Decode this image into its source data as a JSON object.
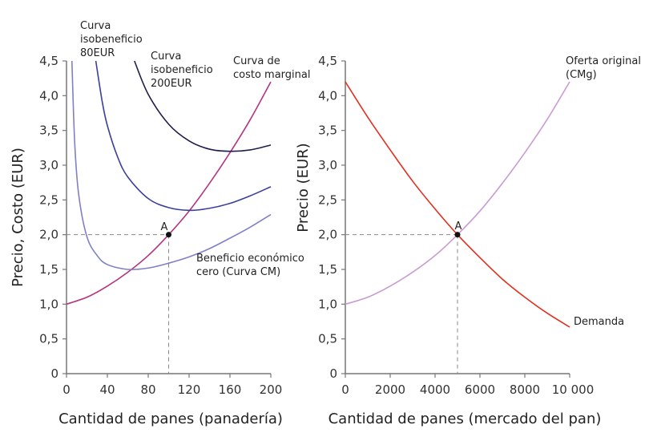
{
  "chart_data": [
    {
      "type": "line",
      "xlabel": "Cantidad de panes (panadería)",
      "ylabel": "Precio, Costo (EUR)",
      "xlim": [
        0,
        200
      ],
      "ylim": [
        0,
        4.5
      ],
      "xticks": [
        "0",
        "40",
        "80",
        "120",
        "160",
        "200"
      ],
      "xtick_values": [
        0,
        40,
        80,
        120,
        160,
        200
      ],
      "yticks": [
        "0",
        "0,5",
        "1,0",
        "1,5",
        "2,0",
        "2,5",
        "3,0",
        "3,5",
        "4,0",
        "4,5"
      ],
      "ytick_values": [
        0,
        0.5,
        1,
        1.5,
        2,
        2.5,
        3,
        3.5,
        4,
        4.5
      ],
      "grid": false,
      "series": [
        {
          "key": "mc",
          "label": [
            "Curva de",
            "costo marginal"
          ],
          "color": "#b3347f",
          "points": [
            [
              0,
              1.0
            ],
            [
              20,
              1.1
            ],
            [
              40,
              1.26
            ],
            [
              60,
              1.46
            ],
            [
              80,
              1.7
            ],
            [
              100,
              2.0
            ],
            [
              120,
              2.34
            ],
            [
              140,
              2.74
            ],
            [
              160,
              3.18
            ],
            [
              180,
              3.66
            ],
            [
              200,
              4.2
            ]
          ]
        },
        {
          "key": "ac",
          "label": [
            "Beneficio económico",
            "cero (Curva CM)"
          ],
          "color": "#7f80c6",
          "points": [
            [
              5.3,
              4.5
            ],
            [
              8,
              3.33
            ],
            [
              12,
              2.57
            ],
            [
              20,
              1.97
            ],
            [
              30,
              1.7
            ],
            [
              40,
              1.57
            ],
            [
              60,
              1.5
            ],
            [
              80,
              1.52
            ],
            [
              100,
              1.59
            ],
            [
              120,
              1.68
            ],
            [
              140,
              1.8
            ],
            [
              160,
              1.95
            ],
            [
              180,
              2.11
            ],
            [
              200,
              2.29
            ]
          ]
        },
        {
          "key": "iso80",
          "label": [
            "Curva",
            "isobeneficio",
            "80EUR"
          ],
          "color": "#3b3f9c",
          "points": [
            [
              28.7,
              4.5
            ],
            [
              35,
              3.91
            ],
            [
              40,
              3.57
            ],
            [
              50,
              3.12
            ],
            [
              60,
              2.83
            ],
            [
              80,
              2.52
            ],
            [
              100,
              2.39
            ],
            [
              120,
              2.35
            ],
            [
              140,
              2.38
            ],
            [
              160,
              2.45
            ],
            [
              180,
              2.56
            ],
            [
              200,
              2.69
            ]
          ]
        },
        {
          "key": "iso200",
          "label": [
            "Curva",
            "isobeneficio",
            "200EUR"
          ],
          "color": "#1d1e4b",
          "points": [
            [
              66.5,
              4.5
            ],
            [
              80,
              4.02
            ],
            [
              100,
              3.59
            ],
            [
              120,
              3.35
            ],
            [
              140,
              3.23
            ],
            [
              160,
              3.2
            ],
            [
              180,
              3.22
            ],
            [
              200,
              3.29
            ]
          ]
        }
      ],
      "point": {
        "label": "A",
        "x": 100,
        "y": 2.0
      }
    },
    {
      "type": "line",
      "xlabel": "Cantidad de panes (mercado del pan)",
      "ylabel": "Precio (EUR)",
      "xlim": [
        0,
        10000
      ],
      "ylim": [
        0,
        4.5
      ],
      "xticks": [
        "0",
        "2000",
        "4000",
        "6000",
        "8000",
        "10 000"
      ],
      "xtick_values": [
        0,
        2000,
        4000,
        6000,
        8000,
        10000
      ],
      "yticks": [
        "0",
        "0,5",
        "1,0",
        "1,5",
        "2,0",
        "2,5",
        "3,0",
        "3,5",
        "4,0",
        "4,5"
      ],
      "ytick_values": [
        0,
        0.5,
        1,
        1.5,
        2,
        2.5,
        3,
        3.5,
        4,
        4.5
      ],
      "grid": false,
      "series": [
        {
          "key": "supply",
          "label": [
            "Oferta original",
            "(CMg)"
          ],
          "color": "#c99bd2",
          "points": [
            [
              0,
              1.0
            ],
            [
              1000,
              1.1
            ],
            [
              2000,
              1.26
            ],
            [
              3000,
              1.46
            ],
            [
              4000,
              1.7
            ],
            [
              5000,
              2.0
            ],
            [
              6000,
              2.34
            ],
            [
              7000,
              2.74
            ],
            [
              8000,
              3.18
            ],
            [
              9000,
              3.66
            ],
            [
              10000,
              4.2
            ]
          ]
        },
        {
          "key": "demand",
          "label": [
            "Demanda"
          ],
          "color": "#e0311f",
          "points": [
            [
              0,
              4.2
            ],
            [
              1000,
              3.69
            ],
            [
              2000,
              3.22
            ],
            [
              3000,
              2.77
            ],
            [
              4000,
              2.37
            ],
            [
              5000,
              2.0
            ],
            [
              6000,
              1.67
            ],
            [
              7000,
              1.36
            ],
            [
              8000,
              1.1
            ],
            [
              9000,
              0.87
            ],
            [
              10000,
              0.67
            ]
          ]
        }
      ],
      "point": {
        "label": "A",
        "x": 5000,
        "y": 2.0
      }
    }
  ]
}
